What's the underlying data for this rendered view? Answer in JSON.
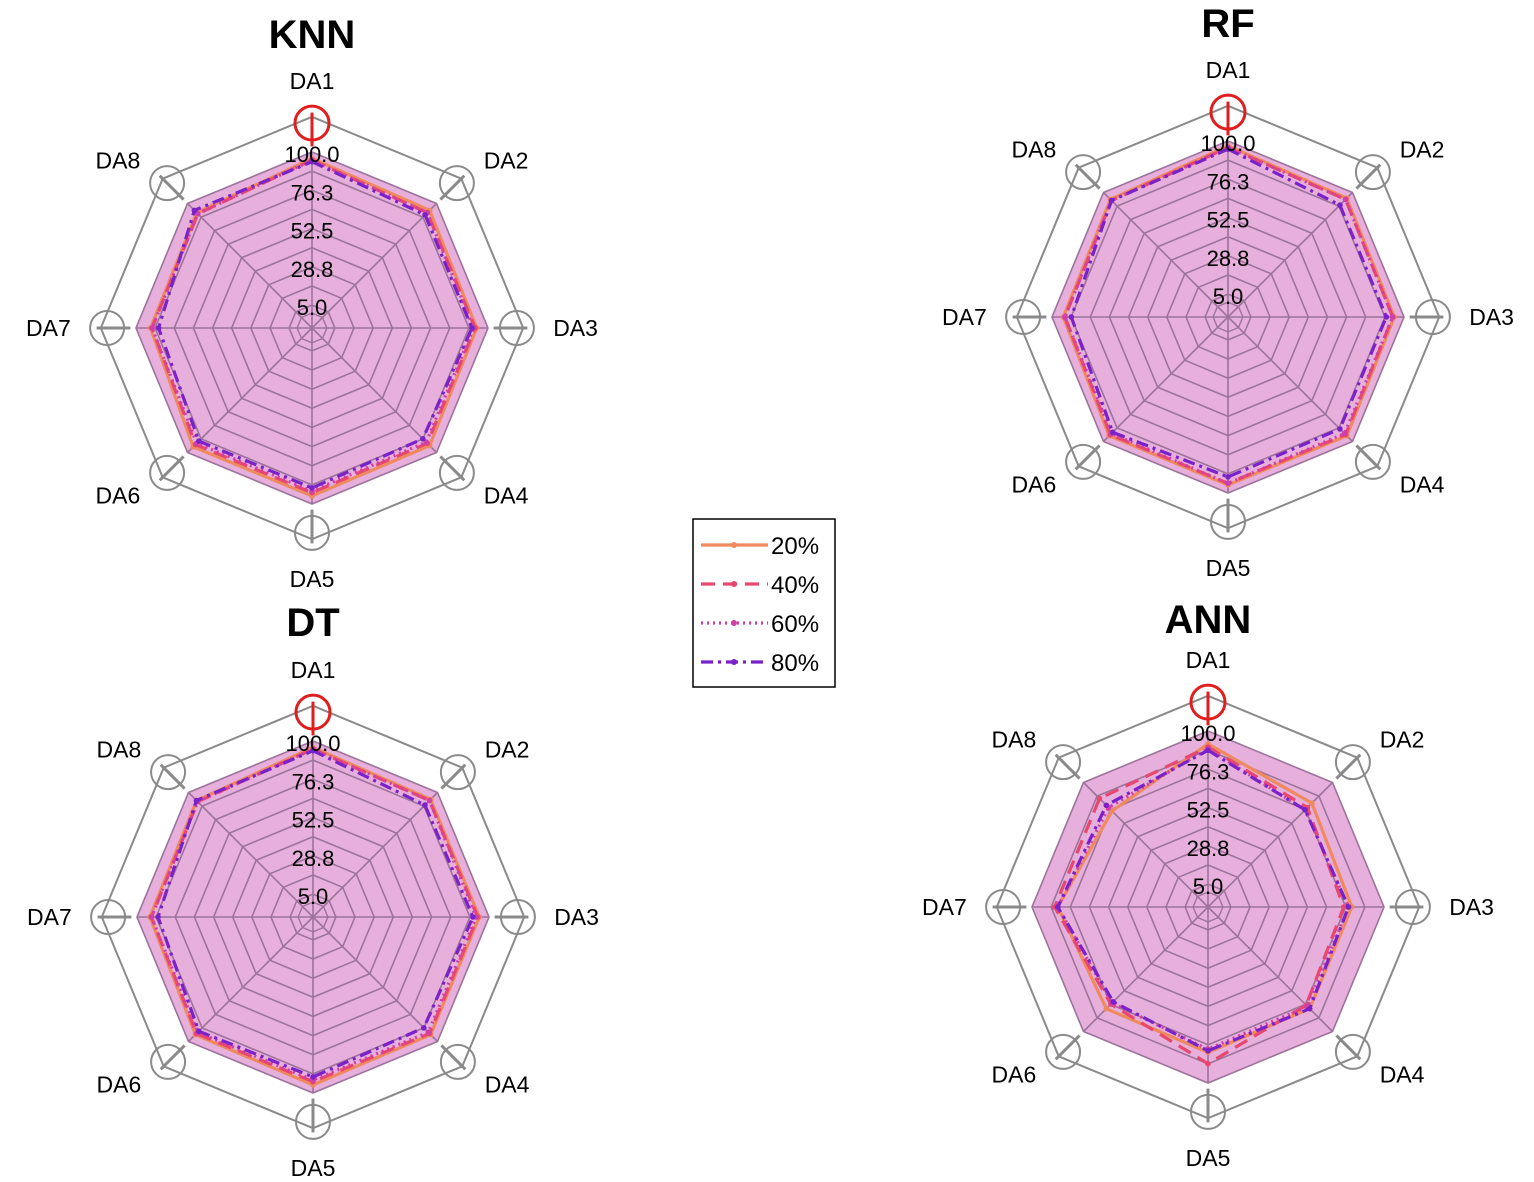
{
  "colors": {
    "fill": "#d77bc4",
    "grid": "#9c739a",
    "outer": "#8a8a8a",
    "highlight": "#e01e1e"
  },
  "legend": [
    {
      "label": "20%",
      "color": "#ee8a5d",
      "style": "solid"
    },
    {
      "label": "40%",
      "color": "#e8476e",
      "style": "dashed"
    },
    {
      "label": "60%",
      "color": "#cf3fa8",
      "style": "dotted"
    },
    {
      "label": "80%",
      "color": "#7a22c9",
      "style": "dashdot"
    }
  ],
  "chart_data": [
    {
      "type": "radar",
      "title": "KNN",
      "axes": [
        "DA1",
        "DA2",
        "DA3",
        "DA4",
        "DA5",
        "DA6",
        "DA7",
        "DA8"
      ],
      "ticks": [
        "5.0",
        "28.8",
        "52.5",
        "76.3",
        "100.0"
      ],
      "range": [
        5.0,
        100.0
      ],
      "series": [
        {
          "name": "20%",
          "values": [
            96,
            94,
            93,
            94,
            95,
            95,
            91,
            92
          ]
        },
        {
          "name": "40%",
          "values": [
            95,
            92,
            92,
            92,
            93,
            93,
            90,
            91
          ]
        },
        {
          "name": "60%",
          "values": [
            95,
            92,
            91,
            91,
            92,
            92,
            90,
            91
          ]
        },
        {
          "name": "80%",
          "values": [
            94,
            90,
            90,
            88,
            90,
            90,
            86,
            94
          ]
        }
      ]
    },
    {
      "type": "radar",
      "title": "RF",
      "axes": [
        "DA1",
        "DA2",
        "DA3",
        "DA4",
        "DA5",
        "DA6",
        "DA7",
        "DA8"
      ],
      "ticks": [
        "5.0",
        "28.8",
        "52.5",
        "76.3",
        "100.0"
      ],
      "range": [
        5.0,
        100.0
      ],
      "series": [
        {
          "name": "20%",
          "values": [
            97,
            95,
            94,
            95,
            95,
            95,
            93,
            94
          ]
        },
        {
          "name": "40%",
          "values": [
            96,
            94,
            93,
            94,
            94,
            94,
            92,
            93
          ]
        },
        {
          "name": "60%",
          "values": [
            96,
            94,
            93,
            93,
            94,
            93,
            92,
            93
          ]
        },
        {
          "name": "80%",
          "values": [
            95,
            89,
            89,
            89,
            90,
            92,
            88,
            93
          ]
        }
      ]
    },
    {
      "type": "radar",
      "title": "DT",
      "axes": [
        "DA1",
        "DA2",
        "DA3",
        "DA4",
        "DA5",
        "DA6",
        "DA7",
        "DA8"
      ],
      "ticks": [
        "5.0",
        "28.8",
        "52.5",
        "76.3",
        "100.0"
      ],
      "range": [
        5.0,
        100.0
      ],
      "series": [
        {
          "name": "20%",
          "values": [
            96,
            94,
            94,
            94,
            95,
            94,
            92,
            93
          ]
        },
        {
          "name": "40%",
          "values": [
            95,
            93,
            93,
            93,
            93,
            93,
            91,
            92
          ]
        },
        {
          "name": "60%",
          "values": [
            95,
            93,
            92,
            92,
            92,
            92,
            91,
            92
          ]
        },
        {
          "name": "80%",
          "values": [
            94,
            89,
            90,
            88,
            90,
            91,
            87,
            93
          ]
        }
      ]
    },
    {
      "type": "radar",
      "title": "ANN",
      "axes": [
        "DA1",
        "DA2",
        "DA3",
        "DA4",
        "DA5",
        "DA6",
        "DA7",
        "DA8"
      ],
      "ticks": [
        "5.0",
        "28.8",
        "52.5",
        "76.3",
        "100.0"
      ],
      "range": [
        5.0,
        100.0
      ],
      "series": [
        {
          "name": "20%",
          "values": [
            92,
            82,
            80,
            80,
            81,
            80,
            84,
            75
          ]
        },
        {
          "name": "40%",
          "values": [
            90,
            78,
            75,
            77,
            88,
            76,
            86,
            86
          ]
        },
        {
          "name": "60%",
          "values": [
            89,
            76,
            78,
            78,
            79,
            75,
            84,
            78
          ]
        },
        {
          "name": "80%",
          "values": [
            88,
            76,
            78,
            80,
            80,
            74,
            84,
            80
          ]
        }
      ]
    }
  ]
}
